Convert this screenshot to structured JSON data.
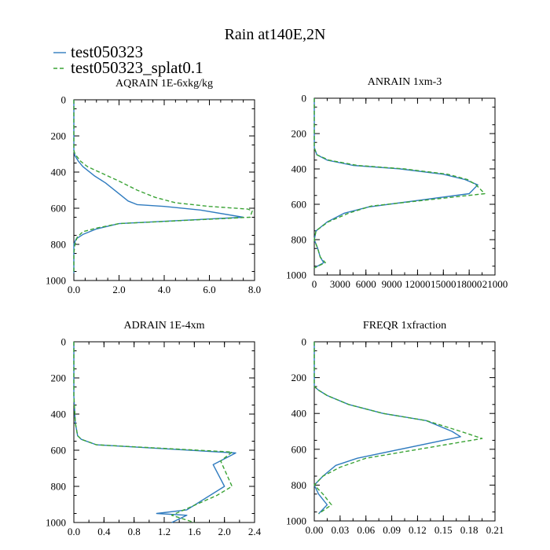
{
  "chart_data": {
    "title": "Rain at140E,2N",
    "legend": [
      {
        "name": "test050323",
        "color": "#2f7bbf",
        "dash": "solid"
      },
      {
        "name": "test050323_splat0.1",
        "color": "#3aa335",
        "dash": "dashed"
      }
    ],
    "panels": [
      {
        "type": "line",
        "title": "AQRAIN  1E-6xkg/kg",
        "xlim": [
          0,
          8
        ],
        "ylim": [
          1000,
          0
        ],
        "xticks": [
          0,
          2,
          4,
          6,
          8
        ],
        "xtick_labels": [
          "0.0",
          "2.0",
          "4.0",
          "6.0",
          "8.0"
        ],
        "xminor": 0.5,
        "yticks": [
          0,
          200,
          400,
          600,
          800,
          1000
        ],
        "ytick_labels": [
          "0",
          "200",
          "400",
          "600",
          "800",
          "1000"
        ],
        "series": [
          {
            "name": "test050323",
            "points": [
              [
                0,
                0
              ],
              [
                0,
                100
              ],
              [
                0,
                200
              ],
              [
                0,
                280
              ],
              [
                0.05,
                310
              ],
              [
                0.2,
                340
              ],
              [
                0.4,
                370
              ],
              [
                0.9,
                420
              ],
              [
                1.4,
                460
              ],
              [
                2.0,
                520
              ],
              [
                2.4,
                560
              ],
              [
                2.8,
                580
              ],
              [
                4.0,
                590
              ],
              [
                5.6,
                610
              ],
              [
                7.5,
                650
              ],
              [
                2.0,
                685
              ],
              [
                1.0,
                715
              ],
              [
                0.4,
                745
              ],
              [
                0.1,
                770
              ],
              [
                0,
                800
              ],
              [
                0,
                850
              ],
              [
                0,
                900
              ],
              [
                0,
                960
              ]
            ]
          },
          {
            "name": "test050323_splat0.1",
            "points": [
              [
                0,
                0
              ],
              [
                0,
                100
              ],
              [
                0,
                200
              ],
              [
                0,
                280
              ],
              [
                0.05,
                300
              ],
              [
                0.3,
                340
              ],
              [
                0.6,
                370
              ],
              [
                1.3,
                410
              ],
              [
                2.0,
                450
              ],
              [
                2.8,
                500
              ],
              [
                3.6,
                540
              ],
              [
                4.5,
                570
              ],
              [
                6.0,
                590
              ],
              [
                7.7,
                605
              ],
              [
                7.9,
                615
              ],
              [
                7.8,
                650
              ],
              [
                2.0,
                685
              ],
              [
                1.0,
                710
              ],
              [
                0.4,
                730
              ],
              [
                0.15,
                760
              ],
              [
                0.05,
                800
              ],
              [
                0,
                850
              ],
              [
                0,
                900
              ],
              [
                0,
                960
              ]
            ]
          }
        ]
      },
      {
        "type": "line",
        "title": "ANRAIN  1xm-3",
        "xlim": [
          0,
          21000
        ],
        "ylim": [
          1000,
          0
        ],
        "xticks": [
          0,
          3000,
          6000,
          9000,
          12000,
          15000,
          18000,
          21000
        ],
        "xtick_labels": [
          "0",
          "3000",
          "6000",
          "9000",
          "12000",
          "15000",
          "18000",
          "21000"
        ],
        "xminor": 1500,
        "yticks": [
          0,
          200,
          400,
          600,
          800,
          1000
        ],
        "ytick_labels": [
          "0",
          "200",
          "400",
          "600",
          "800",
          "1000"
        ],
        "series": [
          {
            "name": "test050323",
            "points": [
              [
                0,
                0
              ],
              [
                0,
                200
              ],
              [
                0,
                280
              ],
              [
                300,
                320
              ],
              [
                1500,
                350
              ],
              [
                4500,
                380
              ],
              [
                10000,
                400
              ],
              [
                15000,
                430
              ],
              [
                17500,
                460
              ],
              [
                19000,
                490
              ],
              [
                18000,
                540
              ],
              [
                6300,
                615
              ],
              [
                3500,
                650
              ],
              [
                1500,
                700
              ],
              [
                200,
                750
              ],
              [
                0,
                800
              ],
              [
                400,
                850
              ],
              [
                700,
                900
              ],
              [
                1100,
                930
              ],
              [
                0,
                960
              ]
            ]
          },
          {
            "name": "test050323_splat0.1",
            "points": [
              [
                0,
                0
              ],
              [
                0,
                200
              ],
              [
                0,
                280
              ],
              [
                300,
                320
              ],
              [
                1700,
                350
              ],
              [
                5000,
                380
              ],
              [
                10500,
                400
              ],
              [
                15500,
                430
              ],
              [
                17800,
                460
              ],
              [
                18800,
                490
              ],
              [
                19800,
                540
              ],
              [
                6600,
                610
              ],
              [
                4000,
                650
              ],
              [
                1600,
                700
              ],
              [
                200,
                750
              ],
              [
                0,
                800
              ],
              [
                400,
                850
              ],
              [
                700,
                900
              ],
              [
                1300,
                930
              ],
              [
                0,
                960
              ]
            ]
          }
        ]
      },
      {
        "type": "line",
        "title": "ADRAIN  1E-4xm",
        "xlim": [
          0,
          2.4
        ],
        "ylim": [
          1000,
          0
        ],
        "xticks": [
          0,
          0.4,
          0.8,
          1.2,
          1.6,
          2.0,
          2.4
        ],
        "xtick_labels": [
          "0.0",
          "0.4",
          "0.8",
          "1.2",
          "1.6",
          "2.0",
          "2.4"
        ],
        "xminor": 0.2,
        "yticks": [
          0,
          200,
          400,
          600,
          800,
          1000
        ],
        "ytick_labels": [
          "0",
          "200",
          "400",
          "600",
          "800",
          "1000"
        ],
        "series": [
          {
            "name": "test050323",
            "points": [
              [
                0,
                0
              ],
              [
                0,
                300
              ],
              [
                0.02,
                450
              ],
              [
                0.05,
                520
              ],
              [
                0.1,
                540
              ],
              [
                0.3,
                570
              ],
              [
                2.15,
                615
              ],
              [
                1.85,
                680
              ],
              [
                2.0,
                800
              ],
              [
                1.5,
                930
              ],
              [
                1.1,
                950
              ],
              [
                1.5,
                960
              ],
              [
                1.3,
                1000
              ]
            ]
          },
          {
            "name": "test050323_splat0.1",
            "points": [
              [
                0,
                0
              ],
              [
                0,
                300
              ],
              [
                0.02,
                450
              ],
              [
                0.05,
                520
              ],
              [
                0.1,
                540
              ],
              [
                0.3,
                570
              ],
              [
                2.1,
                610
              ],
              [
                1.95,
                660
              ],
              [
                2.1,
                800
              ],
              [
                1.9,
                850
              ],
              [
                1.3,
                960
              ],
              [
                1.6,
                1000
              ]
            ]
          }
        ]
      },
      {
        "type": "line",
        "title": "FREQR  1xfraction",
        "xlim": [
          0,
          0.21
        ],
        "ylim": [
          1000,
          0
        ],
        "xticks": [
          0,
          0.03,
          0.06,
          0.09,
          0.12,
          0.15,
          0.18,
          0.21
        ],
        "xtick_labels": [
          "0.00",
          "0.03",
          "0.06",
          "0.09",
          "0.12",
          "0.15",
          "0.18",
          "0.21"
        ],
        "xminor": 0.015,
        "yticks": [
          0,
          200,
          400,
          600,
          800,
          1000
        ],
        "ytick_labels": [
          "0",
          "200",
          "400",
          "600",
          "800",
          "1000"
        ],
        "series": [
          {
            "name": "test050323",
            "points": [
              [
                0,
                0
              ],
              [
                0,
                200
              ],
              [
                0,
                250
              ],
              [
                0.005,
                270
              ],
              [
                0.015,
                300
              ],
              [
                0.04,
                350
              ],
              [
                0.08,
                400
              ],
              [
                0.13,
                440
              ],
              [
                0.16,
                500
              ],
              [
                0.17,
                530
              ],
              [
                0.05,
                650
              ],
              [
                0.025,
                690
              ],
              [
                0.01,
                750
              ],
              [
                0,
                800
              ],
              [
                0.005,
                850
              ],
              [
                0.015,
                910
              ],
              [
                0.005,
                960
              ]
            ]
          },
          {
            "name": "test050323_splat0.1",
            "points": [
              [
                0,
                0
              ],
              [
                0,
                200
              ],
              [
                0,
                250
              ],
              [
                0.005,
                270
              ],
              [
                0.015,
                300
              ],
              [
                0.04,
                350
              ],
              [
                0.08,
                400
              ],
              [
                0.13,
                440
              ],
              [
                0.17,
                500
              ],
              [
                0.195,
                540
              ],
              [
                0.06,
                650
              ],
              [
                0.03,
                700
              ],
              [
                0.01,
                750
              ],
              [
                0,
                800
              ],
              [
                0.01,
                850
              ],
              [
                0.02,
                910
              ],
              [
                0.005,
                960
              ]
            ]
          }
        ]
      }
    ]
  }
}
